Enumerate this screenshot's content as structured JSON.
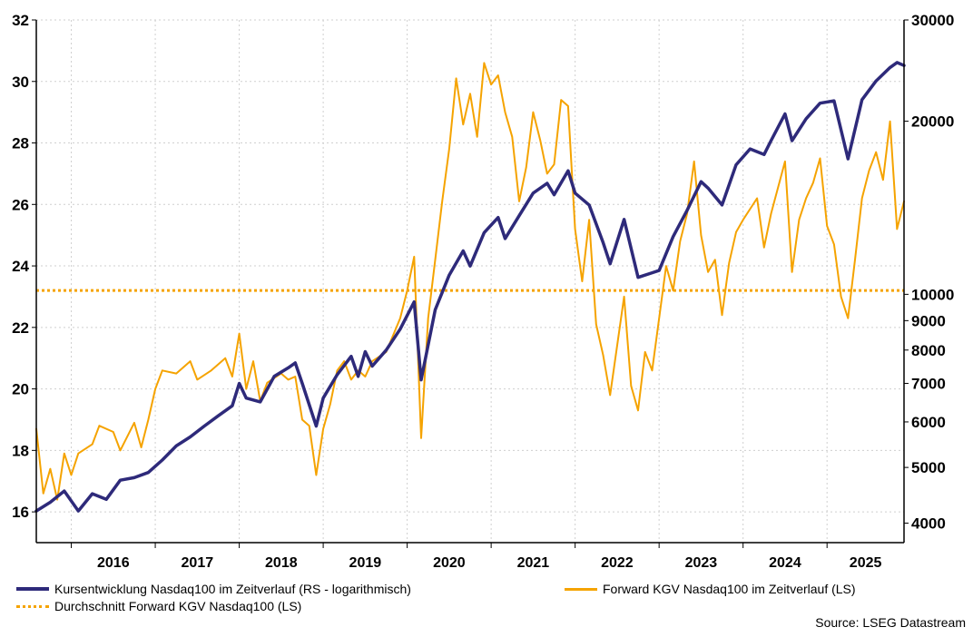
{
  "chart_data": {
    "type": "line",
    "x": [
      "2016",
      "2017",
      "2018",
      "2019",
      "2020",
      "2021",
      "2022",
      "2023",
      "2024",
      "2025"
    ],
    "x_range": [
      "2015-08",
      "2025-12"
    ],
    "grid": true,
    "legend_placement": "bottom",
    "y_left": {
      "range": [
        15,
        32
      ],
      "ticks": [
        "16",
        "18",
        "20",
        "22",
        "24",
        "26",
        "28",
        "30",
        "32"
      ]
    },
    "y_right": {
      "scale": "log",
      "range": [
        3700,
        30000
      ],
      "ticks": [
        "4000",
        "5000",
        "6000",
        "7000",
        "8000",
        "9000",
        "10000",
        "20000",
        "30000"
      ]
    },
    "series": [
      {
        "name": "Kursentwicklung Nasdaq100 im Zeitverlauf (RS - logarithmisch)",
        "axis": "right",
        "color": "#2e2a7a",
        "points": [
          [
            "2015-08",
            4200
          ],
          [
            "2015-10",
            4350
          ],
          [
            "2015-12",
            4550
          ],
          [
            "2016-02",
            4200
          ],
          [
            "2016-04",
            4500
          ],
          [
            "2016-06",
            4400
          ],
          [
            "2016-08",
            4750
          ],
          [
            "2016-10",
            4800
          ],
          [
            "2016-12",
            4900
          ],
          [
            "2017-02",
            5150
          ],
          [
            "2017-04",
            5450
          ],
          [
            "2017-06",
            5650
          ],
          [
            "2017-08",
            5900
          ],
          [
            "2017-10",
            6150
          ],
          [
            "2017-12",
            6400
          ],
          [
            "2018-01",
            7000
          ],
          [
            "2018-02",
            6600
          ],
          [
            "2018-04",
            6500
          ],
          [
            "2018-06",
            7200
          ],
          [
            "2018-08",
            7450
          ],
          [
            "2018-09",
            7600
          ],
          [
            "2018-10",
            7000
          ],
          [
            "2018-12",
            5900
          ],
          [
            "2019-01",
            6600
          ],
          [
            "2019-03",
            7250
          ],
          [
            "2019-05",
            7800
          ],
          [
            "2019-06",
            7200
          ],
          [
            "2019-07",
            7950
          ],
          [
            "2019-08",
            7500
          ],
          [
            "2019-10",
            8000
          ],
          [
            "2019-12",
            8700
          ],
          [
            "2020-02",
            9700
          ],
          [
            "2020-03",
            7100
          ],
          [
            "2020-05",
            9400
          ],
          [
            "2020-07",
            10800
          ],
          [
            "2020-09",
            11900
          ],
          [
            "2020-10",
            11200
          ],
          [
            "2020-12",
            12800
          ],
          [
            "2021-02",
            13600
          ],
          [
            "2021-03",
            12500
          ],
          [
            "2021-05",
            13700
          ],
          [
            "2021-07",
            15000
          ],
          [
            "2021-09",
            15600
          ],
          [
            "2021-10",
            14900
          ],
          [
            "2021-12",
            16400
          ],
          [
            "2022-01",
            15000
          ],
          [
            "2022-03",
            14300
          ],
          [
            "2022-05",
            12300
          ],
          [
            "2022-06",
            11300
          ],
          [
            "2022-08",
            13500
          ],
          [
            "2022-10",
            10700
          ],
          [
            "2022-12",
            10900
          ],
          [
            "2023-01",
            11000
          ],
          [
            "2023-03",
            12600
          ],
          [
            "2023-05",
            14000
          ],
          [
            "2023-07",
            15700
          ],
          [
            "2023-08",
            15300
          ],
          [
            "2023-10",
            14300
          ],
          [
            "2023-12",
            16800
          ],
          [
            "2024-02",
            17900
          ],
          [
            "2024-04",
            17500
          ],
          [
            "2024-05",
            18500
          ],
          [
            "2024-07",
            20600
          ],
          [
            "2024-08",
            18500
          ],
          [
            "2024-10",
            20200
          ],
          [
            "2024-12",
            21500
          ],
          [
            "2025-02",
            21700
          ],
          [
            "2025-04",
            17200
          ],
          [
            "2025-06",
            21800
          ],
          [
            "2025-08",
            23500
          ],
          [
            "2025-10",
            24800
          ],
          [
            "2025-11",
            25300
          ],
          [
            "2025-12",
            25000
          ]
        ]
      },
      {
        "name": "Forward KGV Nasdaq100 im Zeitverlauf (LS)",
        "axis": "left",
        "color": "#f5a300",
        "points": [
          [
            "2015-08",
            18.7
          ],
          [
            "2015-09",
            16.6
          ],
          [
            "2015-10",
            17.4
          ],
          [
            "2015-11",
            16.4
          ],
          [
            "2015-12",
            17.9
          ],
          [
            "2016-01",
            17.2
          ],
          [
            "2016-02",
            17.9
          ],
          [
            "2016-04",
            18.2
          ],
          [
            "2016-05",
            18.8
          ],
          [
            "2016-07",
            18.6
          ],
          [
            "2016-08",
            18.0
          ],
          [
            "2016-10",
            18.9
          ],
          [
            "2016-11",
            18.1
          ],
          [
            "2016-12",
            19.0
          ],
          [
            "2017-01",
            20.0
          ],
          [
            "2017-02",
            20.6
          ],
          [
            "2017-04",
            20.5
          ],
          [
            "2017-06",
            20.9
          ],
          [
            "2017-07",
            20.3
          ],
          [
            "2017-09",
            20.6
          ],
          [
            "2017-11",
            21.0
          ],
          [
            "2017-12",
            20.4
          ],
          [
            "2018-01",
            21.8
          ],
          [
            "2018-02",
            20.0
          ],
          [
            "2018-03",
            20.9
          ],
          [
            "2018-04",
            19.6
          ],
          [
            "2018-05",
            20.2
          ],
          [
            "2018-07",
            20.5
          ],
          [
            "2018-08",
            20.3
          ],
          [
            "2018-09",
            20.4
          ],
          [
            "2018-10",
            19.0
          ],
          [
            "2018-11",
            18.8
          ],
          [
            "2018-12",
            17.2
          ],
          [
            "2019-01",
            18.7
          ],
          [
            "2019-02",
            19.5
          ],
          [
            "2019-03",
            20.6
          ],
          [
            "2019-04",
            20.9
          ],
          [
            "2019-05",
            20.3
          ],
          [
            "2019-06",
            20.6
          ],
          [
            "2019-07",
            20.4
          ],
          [
            "2019-08",
            20.9
          ],
          [
            "2019-10",
            21.2
          ],
          [
            "2019-12",
            22.3
          ],
          [
            "2020-01",
            23.2
          ],
          [
            "2020-02",
            24.3
          ],
          [
            "2020-03",
            18.4
          ],
          [
            "2020-04",
            22.3
          ],
          [
            "2020-05",
            24.2
          ],
          [
            "2020-06",
            26.1
          ],
          [
            "2020-07",
            27.8
          ],
          [
            "2020-08",
            30.1
          ],
          [
            "2020-09",
            28.6
          ],
          [
            "2020-10",
            29.6
          ],
          [
            "2020-11",
            28.2
          ],
          [
            "2020-12",
            30.6
          ],
          [
            "2021-01",
            29.9
          ],
          [
            "2021-02",
            30.2
          ],
          [
            "2021-03",
            29.0
          ],
          [
            "2021-04",
            28.2
          ],
          [
            "2021-05",
            26.1
          ],
          [
            "2021-06",
            27.2
          ],
          [
            "2021-07",
            29.0
          ],
          [
            "2021-08",
            28.1
          ],
          [
            "2021-09",
            27.0
          ],
          [
            "2021-10",
            27.3
          ],
          [
            "2021-11",
            29.4
          ],
          [
            "2021-12",
            29.2
          ],
          [
            "2022-01",
            25.2
          ],
          [
            "2022-02",
            23.5
          ],
          [
            "2022-03",
            25.5
          ],
          [
            "2022-04",
            22.1
          ],
          [
            "2022-05",
            21.1
          ],
          [
            "2022-06",
            19.8
          ],
          [
            "2022-07",
            21.4
          ],
          [
            "2022-08",
            23.0
          ],
          [
            "2022-09",
            20.1
          ],
          [
            "2022-10",
            19.3
          ],
          [
            "2022-11",
            21.2
          ],
          [
            "2022-12",
            20.6
          ],
          [
            "2023-01",
            22.3
          ],
          [
            "2023-02",
            24.0
          ],
          [
            "2023-03",
            23.2
          ],
          [
            "2023-04",
            24.8
          ],
          [
            "2023-05",
            25.7
          ],
          [
            "2023-06",
            27.4
          ],
          [
            "2023-07",
            25.0
          ],
          [
            "2023-08",
            23.8
          ],
          [
            "2023-09",
            24.2
          ],
          [
            "2023-10",
            22.4
          ],
          [
            "2023-11",
            24.1
          ],
          [
            "2023-12",
            25.1
          ],
          [
            "2024-01",
            25.5
          ],
          [
            "2024-03",
            26.2
          ],
          [
            "2024-04",
            24.6
          ],
          [
            "2024-05",
            25.7
          ],
          [
            "2024-07",
            27.4
          ],
          [
            "2024-08",
            23.8
          ],
          [
            "2024-09",
            25.5
          ],
          [
            "2024-10",
            26.2
          ],
          [
            "2024-11",
            26.7
          ],
          [
            "2024-12",
            27.5
          ],
          [
            "2025-01",
            25.3
          ],
          [
            "2025-02",
            24.7
          ],
          [
            "2025-03",
            23.0
          ],
          [
            "2025-04",
            22.3
          ],
          [
            "2025-05",
            24.2
          ],
          [
            "2025-06",
            26.2
          ],
          [
            "2025-07",
            27.1
          ],
          [
            "2025-08",
            27.7
          ],
          [
            "2025-09",
            26.8
          ],
          [
            "2025-10",
            28.7
          ],
          [
            "2025-11",
            25.2
          ],
          [
            "2025-12",
            26.1
          ]
        ]
      },
      {
        "name": "Durchschnitt Forward KGV Nasdaq100 (LS)",
        "axis": "left",
        "color": "#f5a300",
        "style": "dotted",
        "value": 23.2
      }
    ]
  },
  "legend": {
    "item1": "Kursentwicklung Nasdaq100 im Zeitverlauf (RS - logarithmisch)",
    "item2": "Forward KGV Nasdaq100 im Zeitverlauf (LS)",
    "item3": "Durchschnitt Forward KGV Nasdaq100 (LS)"
  },
  "source": "Source: LSEG Datastream"
}
